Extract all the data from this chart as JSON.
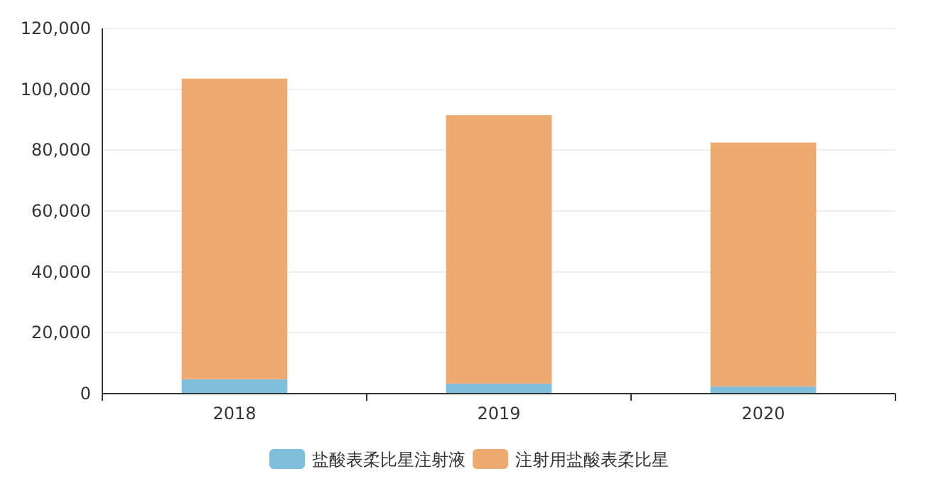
{
  "chart_data": {
    "type": "bar",
    "stacked": true,
    "categories": [
      "2018",
      "2019",
      "2020"
    ],
    "series": [
      {
        "name": "盐酸表柔比星注射液",
        "color": "#7fbfdc",
        "values": [
          4700,
          3300,
          2400
        ]
      },
      {
        "name": "注射用盐酸表柔比星",
        "color": "#edab72",
        "values": [
          98800,
          88200,
          80100
        ]
      }
    ],
    "ylim": [
      0,
      120000
    ],
    "yticks": [
      {
        "value": 0,
        "label": "0"
      },
      {
        "value": 20000,
        "label": "20,000"
      },
      {
        "value": 40000,
        "label": "40,000"
      },
      {
        "value": 60000,
        "label": "60,000"
      },
      {
        "value": 80000,
        "label": "80,000"
      },
      {
        "value": 100000,
        "label": "100,000"
      },
      {
        "value": 120000,
        "label": "120,000"
      }
    ],
    "grid": "y",
    "legend": "bottom"
  }
}
